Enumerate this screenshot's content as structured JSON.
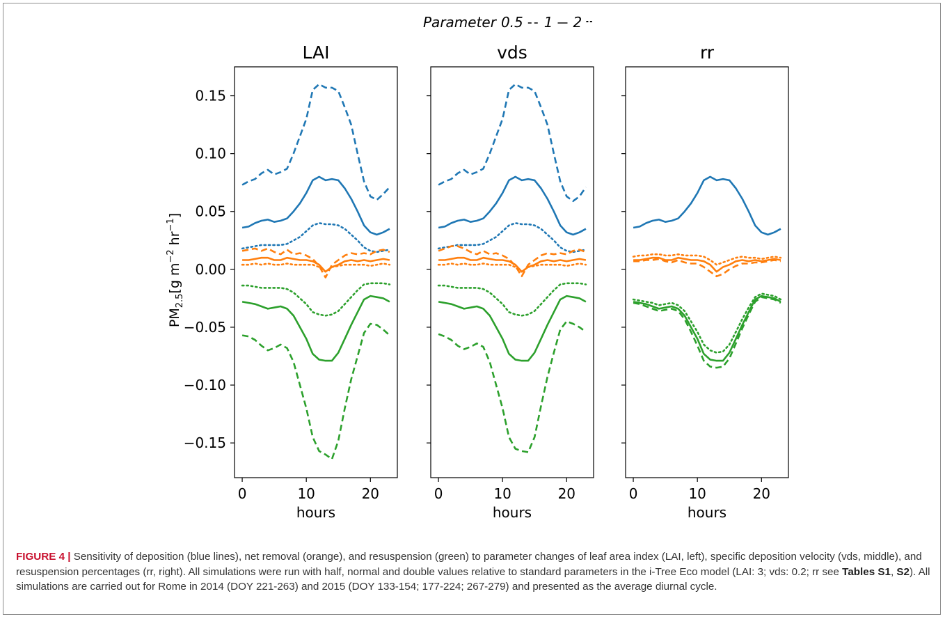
{
  "chart_data": [
    {
      "type": "line",
      "title": "LAI",
      "xlabel": "hours",
      "ylabel": "PM2.5[g m−2 hr−1]",
      "xlim": [
        -1.2,
        24.2
      ],
      "ylim": [
        -0.18,
        0.175
      ],
      "xticks": [
        0,
        10,
        20
      ],
      "yticks": [
        0.15,
        0.1,
        0.05,
        0.0,
        -0.05,
        -0.1,
        -0.15
      ],
      "x": [
        0,
        1,
        2,
        3,
        4,
        5,
        6,
        7,
        8,
        9,
        10,
        11,
        12,
        13,
        14,
        15,
        16,
        17,
        18,
        19,
        20,
        21,
        22,
        23
      ],
      "series": [
        {
          "group": "deposition",
          "color": "#1f77b4",
          "style": "dashed",
          "values": [
            0.073,
            0.076,
            0.078,
            0.083,
            0.086,
            0.082,
            0.084,
            0.087,
            0.1,
            0.115,
            0.13,
            0.155,
            0.16,
            0.157,
            0.157,
            0.154,
            0.14,
            0.125,
            0.1,
            0.076,
            0.063,
            0.06,
            0.065,
            0.071
          ]
        },
        {
          "group": "deposition",
          "color": "#1f77b4",
          "style": "solid",
          "values": [
            0.036,
            0.037,
            0.04,
            0.042,
            0.043,
            0.041,
            0.042,
            0.044,
            0.05,
            0.057,
            0.066,
            0.077,
            0.08,
            0.077,
            0.078,
            0.077,
            0.07,
            0.061,
            0.05,
            0.038,
            0.032,
            0.03,
            0.032,
            0.035
          ]
        },
        {
          "group": "deposition",
          "color": "#1f77b4",
          "style": "dotted",
          "values": [
            0.018,
            0.019,
            0.02,
            0.021,
            0.021,
            0.021,
            0.021,
            0.022,
            0.025,
            0.028,
            0.033,
            0.038,
            0.04,
            0.039,
            0.039,
            0.038,
            0.035,
            0.03,
            0.025,
            0.019,
            0.016,
            0.015,
            0.016,
            0.017
          ]
        },
        {
          "group": "net removal",
          "color": "#ff7f0e",
          "style": "dashed",
          "values": [
            0.016,
            0.017,
            0.018,
            0.016,
            0.018,
            0.015,
            0.013,
            0.017,
            0.013,
            0.014,
            0.012,
            0.009,
            0.003,
            -0.007,
            0.004,
            0.008,
            0.012,
            0.014,
            0.013,
            0.014,
            0.013,
            0.016,
            0.017,
            0.015
          ]
        },
        {
          "group": "net removal",
          "color": "#ff7f0e",
          "style": "solid",
          "values": [
            0.008,
            0.008,
            0.009,
            0.01,
            0.01,
            0.008,
            0.008,
            0.01,
            0.009,
            0.008,
            0.008,
            0.007,
            0.004,
            -0.002,
            0.002,
            0.004,
            0.007,
            0.008,
            0.007,
            0.008,
            0.007,
            0.008,
            0.009,
            0.008
          ]
        },
        {
          "group": "net removal",
          "color": "#ff7f0e",
          "style": "dotted",
          "values": [
            0.004,
            0.004,
            0.005,
            0.004,
            0.005,
            0.004,
            0.004,
            0.005,
            0.004,
            0.004,
            0.004,
            0.004,
            0.002,
            -0.002,
            0.002,
            0.003,
            0.004,
            0.004,
            0.004,
            0.004,
            0.003,
            0.004,
            0.005,
            0.004
          ]
        },
        {
          "group": "resuspension",
          "color": "#2ca02c",
          "style": "dotted",
          "values": [
            -0.014,
            -0.014,
            -0.015,
            -0.016,
            -0.016,
            -0.016,
            -0.016,
            -0.017,
            -0.02,
            -0.025,
            -0.03,
            -0.037,
            -0.039,
            -0.04,
            -0.039,
            -0.036,
            -0.03,
            -0.024,
            -0.018,
            -0.013,
            -0.012,
            -0.012,
            -0.012,
            -0.013
          ]
        },
        {
          "group": "resuspension",
          "color": "#2ca02c",
          "style": "solid",
          "values": [
            -0.028,
            -0.029,
            -0.03,
            -0.032,
            -0.034,
            -0.033,
            -0.032,
            -0.034,
            -0.04,
            -0.05,
            -0.06,
            -0.073,
            -0.078,
            -0.079,
            -0.079,
            -0.072,
            -0.06,
            -0.048,
            -0.037,
            -0.026,
            -0.023,
            -0.024,
            -0.025,
            -0.028
          ]
        },
        {
          "group": "resuspension",
          "color": "#2ca02c",
          "style": "dashed",
          "values": [
            -0.057,
            -0.058,
            -0.061,
            -0.066,
            -0.07,
            -0.068,
            -0.065,
            -0.068,
            -0.08,
            -0.1,
            -0.12,
            -0.145,
            -0.157,
            -0.16,
            -0.164,
            -0.148,
            -0.12,
            -0.095,
            -0.075,
            -0.055,
            -0.047,
            -0.048,
            -0.052,
            -0.057
          ]
        }
      ]
    },
    {
      "type": "line",
      "title": "vds",
      "xlabel": "hours",
      "xlim": [
        -1.2,
        24.2
      ],
      "ylim": [
        -0.18,
        0.175
      ],
      "xticks": [
        0,
        10,
        20
      ],
      "x": [
        0,
        1,
        2,
        3,
        4,
        5,
        6,
        7,
        8,
        9,
        10,
        11,
        12,
        13,
        14,
        15,
        16,
        17,
        18,
        19,
        20,
        21,
        22,
        23
      ],
      "series": [
        {
          "group": "deposition",
          "color": "#1f77b4",
          "style": "dashed",
          "values": [
            0.073,
            0.076,
            0.078,
            0.083,
            0.086,
            0.082,
            0.084,
            0.087,
            0.1,
            0.115,
            0.13,
            0.155,
            0.16,
            0.157,
            0.157,
            0.154,
            0.14,
            0.125,
            0.1,
            0.076,
            0.063,
            0.059,
            0.063,
            0.071
          ]
        },
        {
          "group": "deposition",
          "color": "#1f77b4",
          "style": "solid",
          "values": [
            0.036,
            0.037,
            0.04,
            0.042,
            0.043,
            0.041,
            0.042,
            0.044,
            0.05,
            0.057,
            0.066,
            0.077,
            0.08,
            0.077,
            0.078,
            0.077,
            0.07,
            0.061,
            0.05,
            0.038,
            0.032,
            0.03,
            0.032,
            0.035
          ]
        },
        {
          "group": "deposition",
          "color": "#1f77b4",
          "style": "dotted",
          "values": [
            0.018,
            0.019,
            0.02,
            0.021,
            0.021,
            0.021,
            0.021,
            0.022,
            0.025,
            0.028,
            0.033,
            0.038,
            0.04,
            0.039,
            0.039,
            0.038,
            0.035,
            0.03,
            0.025,
            0.019,
            0.016,
            0.015,
            0.016,
            0.017
          ]
        },
        {
          "group": "net removal",
          "color": "#ff7f0e",
          "style": "dashed",
          "values": [
            0.016,
            0.018,
            0.02,
            0.02,
            0.018,
            0.015,
            0.013,
            0.016,
            0.013,
            0.014,
            0.012,
            0.009,
            0.003,
            -0.006,
            0.004,
            0.008,
            0.012,
            0.014,
            0.013,
            0.014,
            0.013,
            0.016,
            0.017,
            0.015
          ]
        },
        {
          "group": "net removal",
          "color": "#ff7f0e",
          "style": "solid",
          "values": [
            0.008,
            0.008,
            0.009,
            0.01,
            0.01,
            0.008,
            0.008,
            0.01,
            0.009,
            0.008,
            0.008,
            0.007,
            0.004,
            -0.002,
            0.002,
            0.004,
            0.007,
            0.008,
            0.007,
            0.008,
            0.007,
            0.008,
            0.009,
            0.008
          ]
        },
        {
          "group": "net removal",
          "color": "#ff7f0e",
          "style": "dotted",
          "values": [
            0.004,
            0.004,
            0.005,
            0.004,
            0.005,
            0.004,
            0.004,
            0.005,
            0.004,
            0.004,
            0.004,
            0.004,
            0.002,
            -0.002,
            0.002,
            0.003,
            0.004,
            0.004,
            0.004,
            0.004,
            0.003,
            0.004,
            0.005,
            0.004
          ]
        },
        {
          "group": "resuspension",
          "color": "#2ca02c",
          "style": "dotted",
          "values": [
            -0.014,
            -0.014,
            -0.015,
            -0.016,
            -0.016,
            -0.016,
            -0.016,
            -0.017,
            -0.02,
            -0.025,
            -0.03,
            -0.037,
            -0.039,
            -0.04,
            -0.039,
            -0.036,
            -0.03,
            -0.024,
            -0.018,
            -0.013,
            -0.012,
            -0.012,
            -0.012,
            -0.013
          ]
        },
        {
          "group": "resuspension",
          "color": "#2ca02c",
          "style": "solid",
          "values": [
            -0.028,
            -0.029,
            -0.03,
            -0.032,
            -0.034,
            -0.033,
            -0.032,
            -0.034,
            -0.04,
            -0.05,
            -0.06,
            -0.073,
            -0.078,
            -0.079,
            -0.079,
            -0.072,
            -0.06,
            -0.048,
            -0.037,
            -0.026,
            -0.023,
            -0.024,
            -0.025,
            -0.028
          ]
        },
        {
          "group": "resuspension",
          "color": "#2ca02c",
          "style": "dashed",
          "values": [
            -0.056,
            -0.058,
            -0.061,
            -0.066,
            -0.069,
            -0.067,
            -0.064,
            -0.067,
            -0.08,
            -0.1,
            -0.12,
            -0.145,
            -0.155,
            -0.157,
            -0.158,
            -0.145,
            -0.118,
            -0.093,
            -0.072,
            -0.052,
            -0.045,
            -0.047,
            -0.05,
            -0.054
          ]
        }
      ]
    },
    {
      "type": "line",
      "title": "rr",
      "xlabel": "hours",
      "xlim": [
        -1.2,
        24.2
      ],
      "ylim": [
        -0.18,
        0.175
      ],
      "xticks": [
        0,
        10,
        20
      ],
      "x": [
        0,
        1,
        2,
        3,
        4,
        5,
        6,
        7,
        8,
        9,
        10,
        11,
        12,
        13,
        14,
        15,
        16,
        17,
        18,
        19,
        20,
        21,
        22,
        23
      ],
      "series": [
        {
          "group": "deposition",
          "color": "#1f77b4",
          "style": "solid",
          "values": [
            0.036,
            0.037,
            0.04,
            0.042,
            0.043,
            0.041,
            0.042,
            0.044,
            0.05,
            0.057,
            0.066,
            0.077,
            0.08,
            0.077,
            0.078,
            0.077,
            0.07,
            0.061,
            0.05,
            0.038,
            0.032,
            0.03,
            0.032,
            0.035
          ]
        },
        {
          "group": "net removal",
          "color": "#ff7f0e",
          "style": "dotted",
          "values": [
            0.011,
            0.012,
            0.012,
            0.013,
            0.013,
            0.012,
            0.012,
            0.013,
            0.012,
            0.012,
            0.012,
            0.011,
            0.008,
            0.004,
            0.006,
            0.008,
            0.01,
            0.011,
            0.01,
            0.01,
            0.009,
            0.01,
            0.011,
            0.01
          ]
        },
        {
          "group": "net removal",
          "color": "#ff7f0e",
          "style": "solid",
          "values": [
            0.008,
            0.008,
            0.009,
            0.01,
            0.01,
            0.008,
            0.008,
            0.01,
            0.009,
            0.008,
            0.008,
            0.007,
            0.004,
            -0.002,
            0.002,
            0.004,
            0.007,
            0.008,
            0.007,
            0.008,
            0.007,
            0.008,
            0.009,
            0.008
          ]
        },
        {
          "group": "net removal",
          "color": "#ff7f0e",
          "style": "dashed",
          "values": [
            0.007,
            0.007,
            0.008,
            0.008,
            0.009,
            0.007,
            0.006,
            0.008,
            0.006,
            0.005,
            0.005,
            0.002,
            -0.002,
            -0.006,
            -0.004,
            0.0,
            0.003,
            0.005,
            0.005,
            0.006,
            0.006,
            0.007,
            0.008,
            0.007
          ]
        },
        {
          "group": "resuspension",
          "color": "#2ca02c",
          "style": "dotted",
          "values": [
            -0.026,
            -0.027,
            -0.028,
            -0.029,
            -0.031,
            -0.03,
            -0.029,
            -0.031,
            -0.036,
            -0.045,
            -0.054,
            -0.065,
            -0.07,
            -0.072,
            -0.071,
            -0.065,
            -0.054,
            -0.043,
            -0.033,
            -0.024,
            -0.021,
            -0.022,
            -0.023,
            -0.026
          ]
        },
        {
          "group": "resuspension",
          "color": "#2ca02c",
          "style": "solid",
          "values": [
            -0.028,
            -0.029,
            -0.03,
            -0.032,
            -0.034,
            -0.033,
            -0.032,
            -0.034,
            -0.04,
            -0.05,
            -0.06,
            -0.073,
            -0.078,
            -0.079,
            -0.079,
            -0.072,
            -0.06,
            -0.048,
            -0.037,
            -0.026,
            -0.023,
            -0.024,
            -0.025,
            -0.028
          ]
        },
        {
          "group": "resuspension",
          "color": "#2ca02c",
          "style": "dashed",
          "values": [
            -0.029,
            -0.03,
            -0.032,
            -0.034,
            -0.036,
            -0.035,
            -0.034,
            -0.036,
            -0.043,
            -0.054,
            -0.066,
            -0.079,
            -0.084,
            -0.085,
            -0.084,
            -0.077,
            -0.064,
            -0.051,
            -0.039,
            -0.028,
            -0.024,
            -0.025,
            -0.026,
            -0.029
          ]
        }
      ]
    }
  ],
  "legend": {
    "prefix": "Parameter",
    "items": [
      {
        "label": "0.5",
        "style": "dashed"
      },
      {
        "label": "1",
        "style": "solid"
      },
      {
        "label": "2",
        "style": "dotted"
      }
    ]
  },
  "ylabel": {
    "main": "PM",
    "sub": "2.5",
    "unit_open": "[g m",
    "exp1": "−2",
    "mid": " hr",
    "exp2": "−1",
    "unit_close": "]"
  },
  "caption": {
    "figure_label": "FIGURE 4 |",
    "text_1": " Sensitivity of deposition (blue lines), net removal (orange), and resuspension (green) to parameter changes of leaf area index (LAI, left), specific deposition velocity (vds, middle), and resuspension percentages (rr, right). All simulations were run with half, normal and double values relative to standard parameters in the i-Tree Eco model (LAI: 3; vds: 0.2; rr see ",
    "table_1": "Tables S1",
    "sep": ", ",
    "table_2": "S2",
    "text_2": "). All simulations are carried out for Rome in 2014 (DOY 221-263) and 2015 (DOY 133-154; 177-224; 267-279) and presented as the average diurnal cycle."
  }
}
